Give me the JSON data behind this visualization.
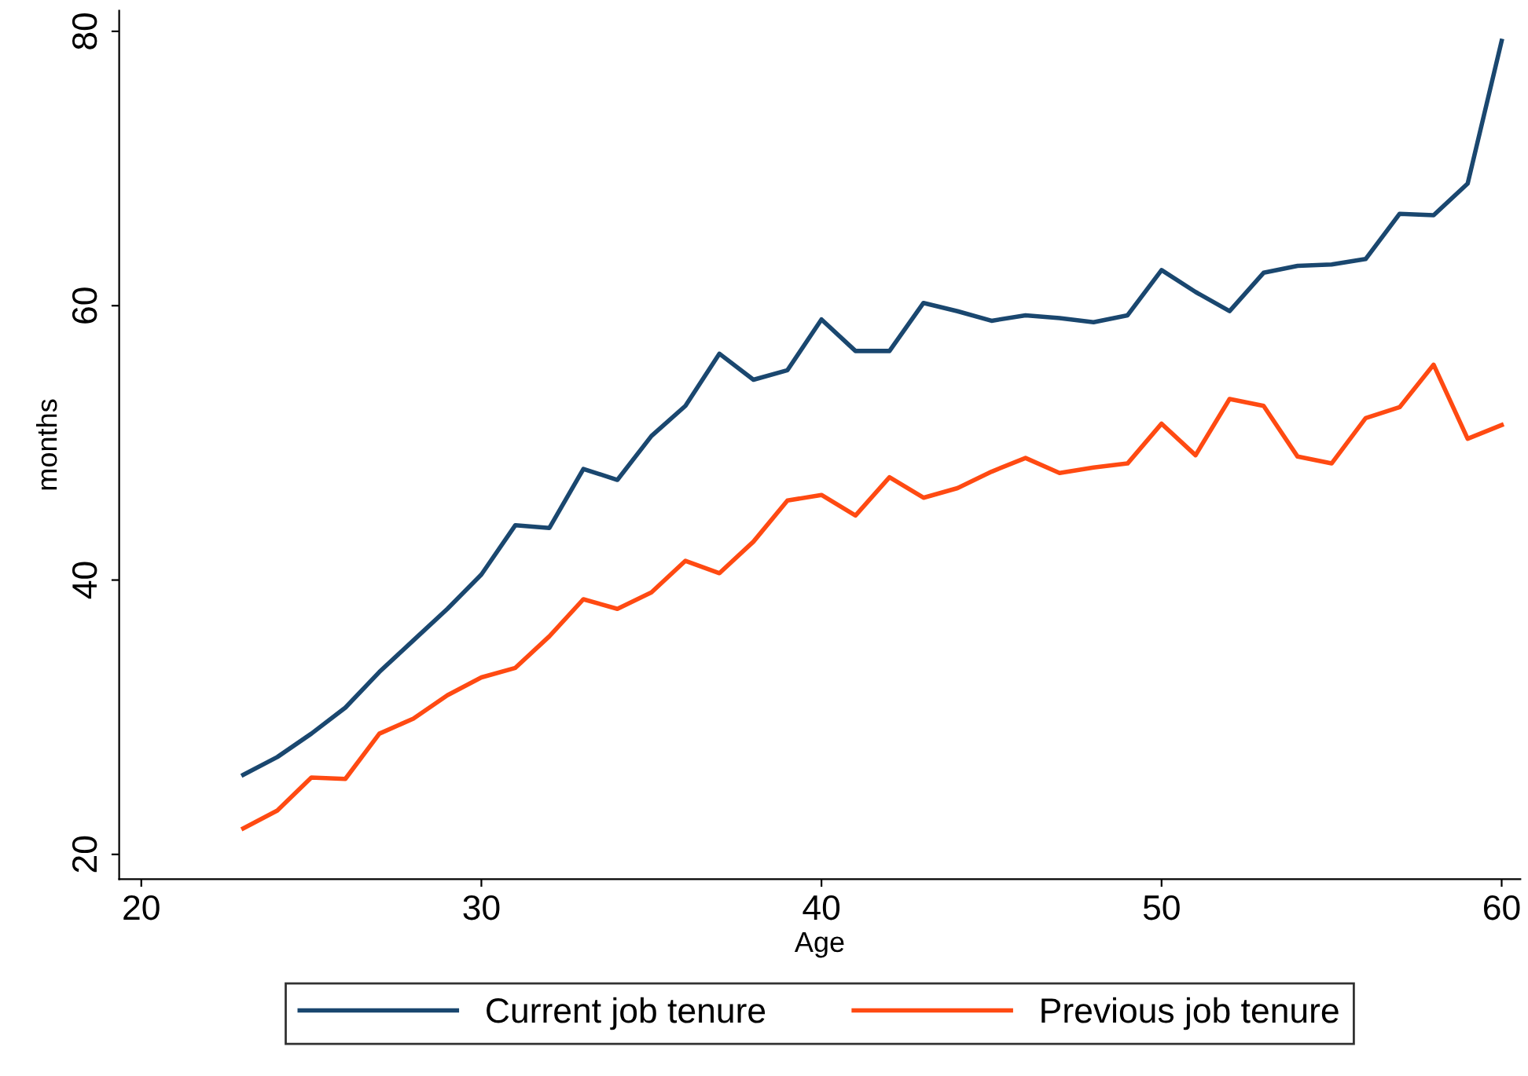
{
  "chart_data": {
    "type": "line",
    "xlabel": "Age",
    "ylabel": "months",
    "x": [
      23,
      24,
      25,
      26,
      27,
      28,
      29,
      30,
      31,
      32,
      33,
      34,
      35,
      36,
      37,
      38,
      39,
      40,
      41,
      42,
      43,
      44,
      45,
      46,
      47,
      48,
      49,
      50,
      51,
      52,
      53,
      54,
      55,
      56,
      57,
      58,
      59,
      60
    ],
    "series": [
      {
        "name": "Current job tenure",
        "color": "#1a476f",
        "values": [
          25.8,
          27.1,
          28.8,
          30.7,
          33.3,
          35.6,
          37.9,
          40.4,
          44.0,
          43.8,
          48.1,
          47.3,
          50.5,
          52.7,
          56.5,
          54.6,
          55.3,
          59.0,
          56.7,
          56.7,
          60.2,
          59.6,
          58.9,
          59.3,
          59.1,
          58.8,
          59.3,
          62.6,
          61.0,
          59.6,
          62.4,
          62.9,
          63.0,
          63.4,
          66.7,
          66.6,
          68.9,
          79.3
        ]
      },
      {
        "name": "Previous job tenure",
        "color": "#ff4a12",
        "values": [
          21.9,
          23.2,
          25.6,
          25.5,
          28.8,
          29.9,
          31.6,
          32.9,
          33.6,
          35.9,
          38.6,
          37.9,
          39.1,
          41.4,
          40.5,
          42.8,
          45.8,
          46.2,
          44.7,
          47.5,
          46.0,
          46.7,
          47.9,
          48.9,
          47.8,
          48.2,
          48.5,
          51.4,
          49.1,
          53.2,
          52.7,
          49.0,
          48.5,
          51.8,
          52.6,
          55.7,
          50.3,
          51.3
        ]
      }
    ],
    "xlim": [
      19.35,
      60.55
    ],
    "xticks": [
      20,
      30,
      40,
      50,
      60
    ],
    "ylim": [
      18.2,
      81.5
    ],
    "yticks": [
      20,
      40,
      60,
      80
    ],
    "grid": false,
    "legend": "bottom",
    "line_style": "solid",
    "marker": "none"
  }
}
